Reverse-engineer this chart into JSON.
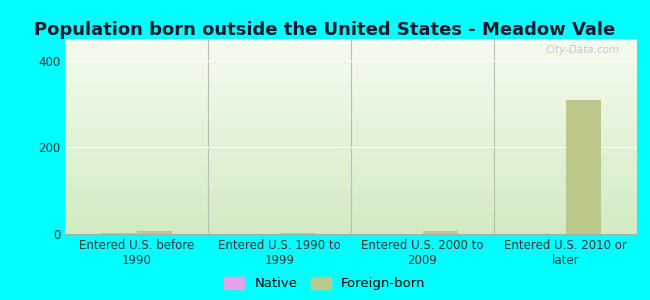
{
  "title": "Population born outside the United States - Meadow Vale",
  "background_outer": "#00ffff",
  "background_inner_gradient_top": "#f5faf0",
  "background_inner_gradient_bottom": "#d8eecc",
  "categories": [
    "Entered U.S. before\n1990",
    "Entered U.S. 1990 to\n1999",
    "Entered U.S. 2000 to\n2009",
    "Entered U.S. 2010 or\nlater"
  ],
  "native_values": [
    2,
    0,
    0,
    0
  ],
  "foreign_values": [
    8,
    2,
    8,
    310
  ],
  "native_color": "#e8a0e8",
  "foreign_color": "#bdc98a",
  "ylim": [
    0,
    450
  ],
  "yticks": [
    0,
    200,
    400
  ],
  "bar_width": 0.25,
  "watermark": "City-Data.com",
  "legend_native_label": "Native",
  "legend_foreign_label": "Foreign-born",
  "title_fontsize": 13,
  "tick_fontsize": 8.5,
  "legend_fontsize": 9.5,
  "title_color": "#1a1a2e",
  "tick_color": "#333333"
}
